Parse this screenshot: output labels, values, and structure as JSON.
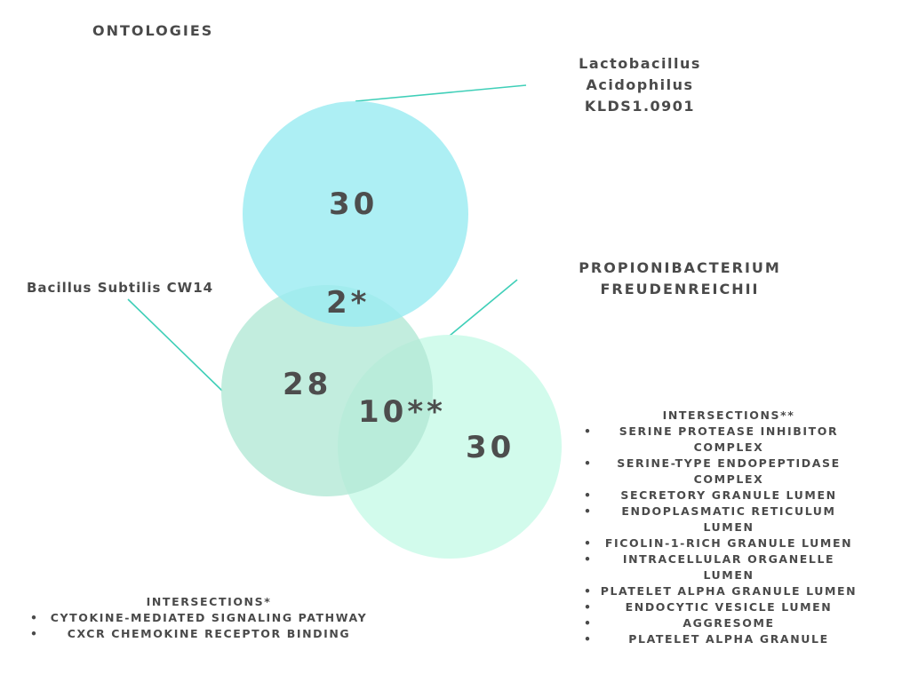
{
  "title": "ONTOLOGIES",
  "sets": {
    "lacto": {
      "name": "Lactobacillus\nAcidophilus\nKLDS1.0901",
      "count": "30",
      "color": "#a6eef2"
    },
    "bacillus": {
      "name": "Bacillus Subtilis CW14",
      "count": "28",
      "color": "#b9eadb"
    },
    "propioni": {
      "name": "PROPIONIBACTERIUM\nFREUDENREICHII",
      "count": "30",
      "color": "#cdfbea"
    }
  },
  "intersections": {
    "lacto_bacillus": "2*",
    "bacillus_propioni": "10**"
  },
  "accent_color": "#3fcfb8",
  "intersections_star": {
    "heading": "INTERSECTIONS*",
    "items": [
      "CYTOKINE-MEDIATED SIGNALING PATHWAY",
      "CXCR CHEMOKINE RECEPTOR BINDING"
    ]
  },
  "intersections_double_star": {
    "heading": "INTERSECTIONS**",
    "items": [
      "SERINE PROTEASE INHIBITOR COMPLEX",
      "SERINE-TYPE ENDOPEPTIDASE COMPLEX",
      "SECRETORY GRANULE LUMEN",
      "ENDOPLASMATIC RETICULUM LUMEN",
      "FICOLIN-1-RICH GRANULE LUMEN",
      "INTRACELLULAR ORGANELLE LUMEN",
      "PLATELET ALPHA GRANULE LUMEN",
      "ENDOCYTIC VESICLE LUMEN",
      "AGGRESOME",
      "PLATELET ALPHA GRANULE"
    ]
  }
}
